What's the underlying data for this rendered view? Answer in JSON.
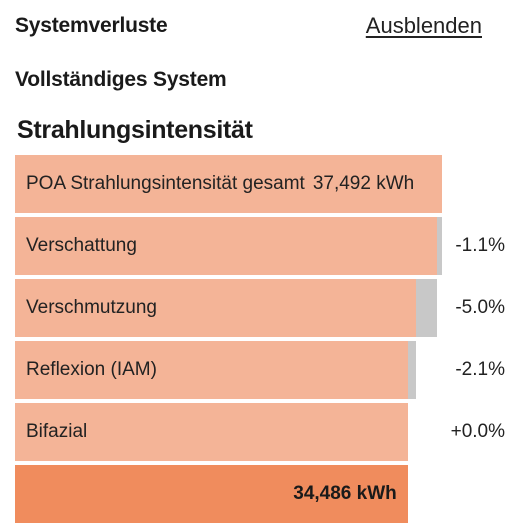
{
  "header": {
    "title": "Systemverluste",
    "hide_label": "Ausblenden"
  },
  "subtitle": "Vollständiges System",
  "section": {
    "title": "Strahlungsintensität",
    "total": {
      "label": "POA Strahlungsintensität gesamt",
      "value": "37,492 kWh",
      "fraction": 1.0
    },
    "losses": [
      {
        "label": "Verschattung",
        "percent": "-1.1%",
        "start_fraction": 1.0,
        "end_fraction": 0.989
      },
      {
        "label": "Verschmutzung",
        "percent": "-5.0%",
        "start_fraction": 0.989,
        "end_fraction": 0.9396
      },
      {
        "label": "Reflexion (IAM)",
        "percent": "-2.1%",
        "start_fraction": 0.9396,
        "end_fraction": 0.9198
      },
      {
        "label": "Bifazial",
        "percent": "+0.0%",
        "start_fraction": 0.9198,
        "end_fraction": 0.9198
      }
    ],
    "result": {
      "value": "34,486 kWh",
      "fraction": 0.9198
    }
  },
  "colors": {
    "bar": "#f4b497",
    "loss": "#c8c8c8",
    "result": "#f08c5d"
  }
}
